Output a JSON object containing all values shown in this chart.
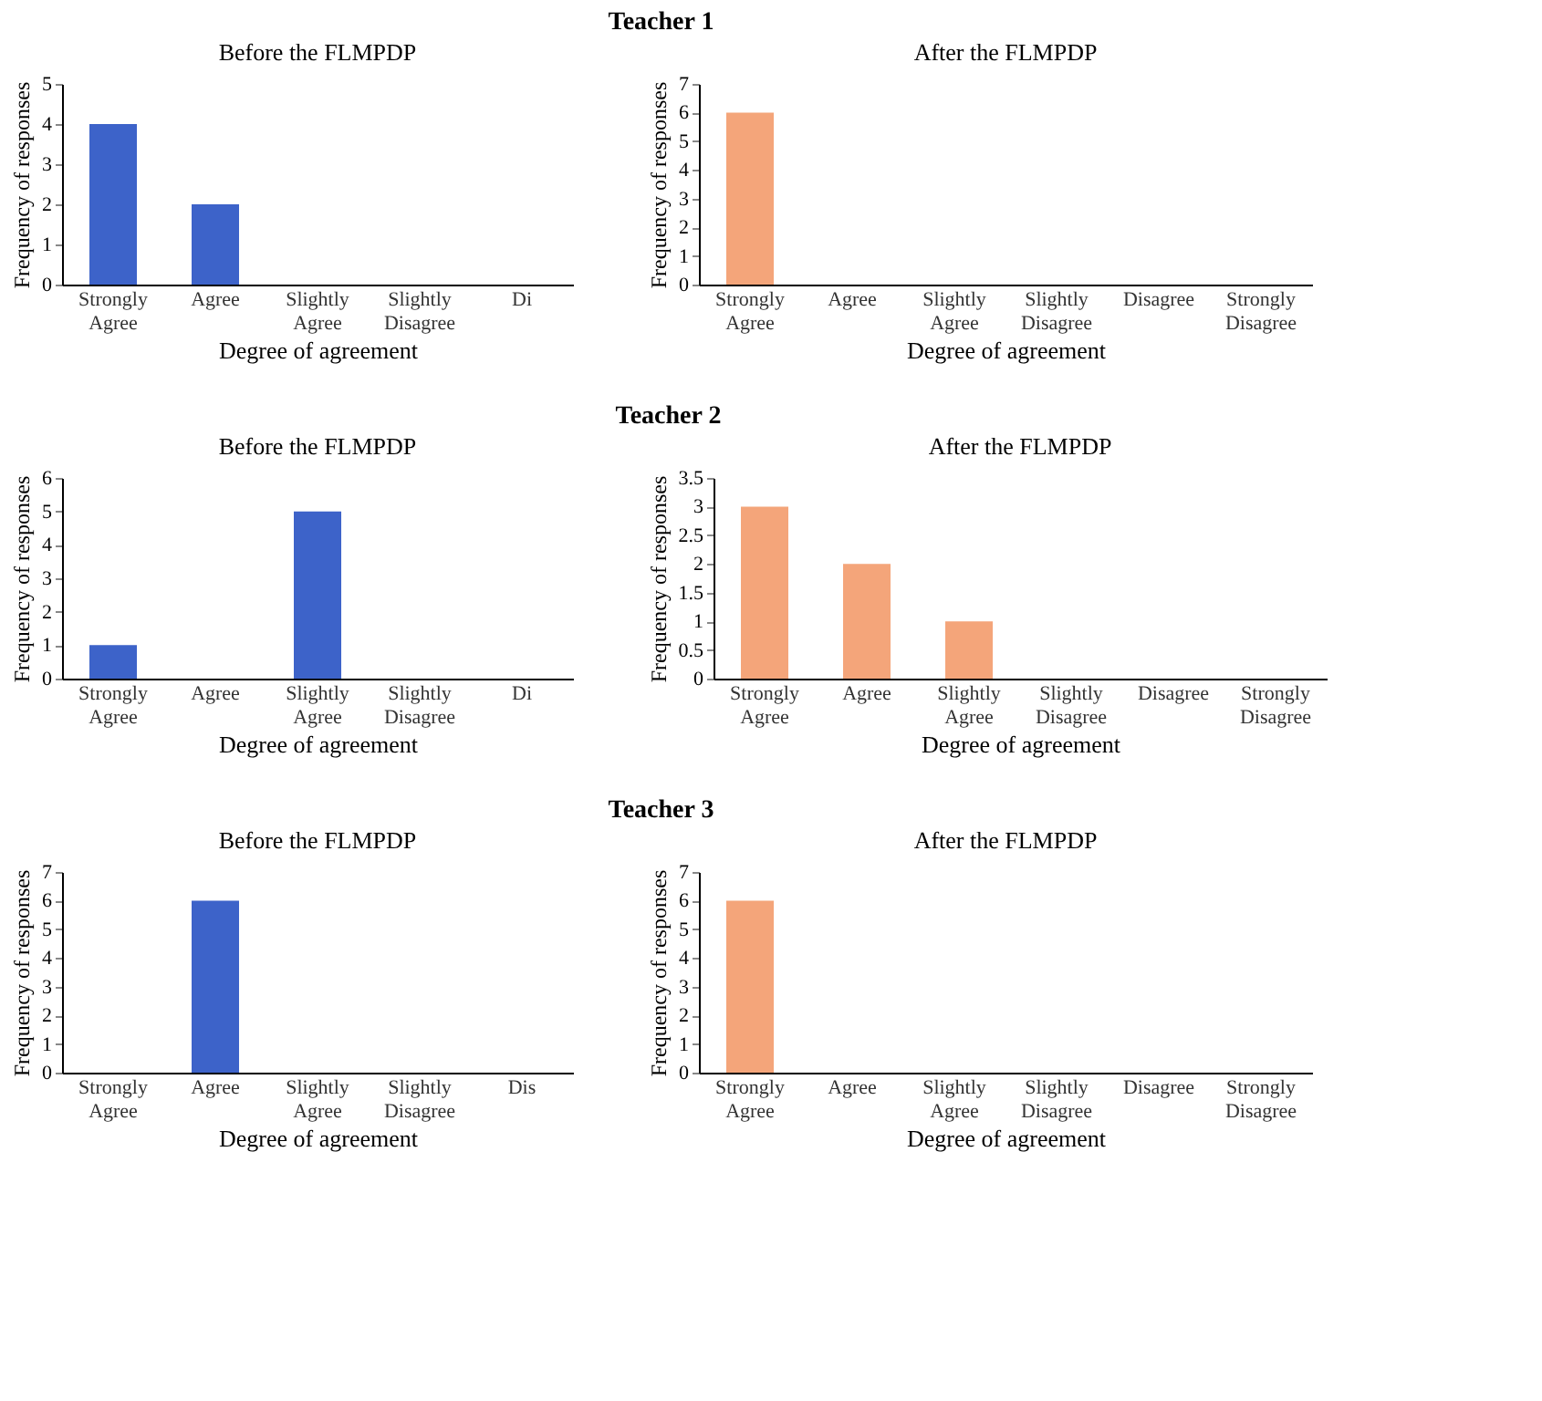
{
  "chart_data": [
    {
      "type": "bar",
      "annotations": [
        "Teacher 1"
      ],
      "title": "Before the FLMPDP",
      "xlabel": "Degree of agreement",
      "ylabel": "Frequency of responses",
      "categories": [
        "Strongly Agree",
        "Agree",
        "Slightly Agree",
        "Slightly Disagree",
        "Di"
      ],
      "values": [
        4,
        2,
        0,
        0,
        0
      ],
      "color": "#3d63c9",
      "ylim": [
        0,
        5
      ],
      "yticks": [
        0,
        1,
        2,
        3,
        4,
        5
      ],
      "grid": false
    },
    {
      "type": "bar",
      "title": "After the FLMPDP",
      "xlabel": "Degree of agreement",
      "ylabel": "Frequency of responses",
      "categories": [
        "Strongly Agree",
        "Agree",
        "Slightly Agree",
        "Slightly Disagree",
        "Disagree",
        "Strongly Disagree"
      ],
      "values": [
        6,
        0,
        0,
        0,
        0,
        0
      ],
      "color": "#f4a57a",
      "ylim": [
        0,
        7
      ],
      "yticks": [
        0,
        1,
        2,
        3,
        4,
        5,
        6,
        7
      ],
      "grid": false
    },
    {
      "type": "bar",
      "annotations": [
        "Teacher 2"
      ],
      "title": "Before the FLMPDP",
      "xlabel": "Degree of agreement",
      "ylabel": "Frequency of responses",
      "categories": [
        "Strongly Agree",
        "Agree",
        "Slightly Agree",
        "Slightly Disagree",
        "Di"
      ],
      "values": [
        1,
        0,
        5,
        0,
        0
      ],
      "color": "#3d63c9",
      "ylim": [
        0,
        6
      ],
      "yticks": [
        0,
        1,
        2,
        3,
        4,
        5,
        6
      ],
      "grid": false
    },
    {
      "type": "bar",
      "title": "After the FLMPDP",
      "xlabel": "Degree of agreement",
      "ylabel": "Frequency of responses",
      "categories": [
        "Strongly Agree",
        "Agree",
        "Slightly Agree",
        "Slightly Disagree",
        "Disagree",
        "Strongly Disagree"
      ],
      "values": [
        3,
        2,
        1,
        0,
        0,
        0
      ],
      "color": "#f4a57a",
      "ylim": [
        0,
        3.5
      ],
      "yticks": [
        0,
        0.5,
        1,
        1.5,
        2,
        2.5,
        3,
        3.5
      ],
      "grid": false
    },
    {
      "type": "bar",
      "annotations": [
        "Teacher 3"
      ],
      "title": "Before the FLMPDP",
      "xlabel": "Degree of agreement",
      "ylabel": "Frequency of responses",
      "categories": [
        "Strongly Agree",
        "Agree",
        "Slightly Agree",
        "Slightly Disagree",
        "Dis"
      ],
      "values": [
        0,
        6,
        0,
        0,
        0
      ],
      "color": "#3d63c9",
      "ylim": [
        0,
        7
      ],
      "yticks": [
        0,
        1,
        2,
        3,
        4,
        5,
        6,
        7
      ],
      "grid": false
    },
    {
      "type": "bar",
      "title": "After the FLMPDP",
      "xlabel": "Degree of agreement",
      "ylabel": "Frequency of responses",
      "categories": [
        "Strongly Agree",
        "Agree",
        "Slightly Agree",
        "Slightly Disagree",
        "Disagree",
        "Strongly Disagree"
      ],
      "values": [
        6,
        0,
        0,
        0,
        0,
        0
      ],
      "color": "#f4a57a",
      "ylim": [
        0,
        7
      ],
      "yticks": [
        0,
        1,
        2,
        3,
        4,
        5,
        6,
        7
      ],
      "grid": false
    }
  ]
}
